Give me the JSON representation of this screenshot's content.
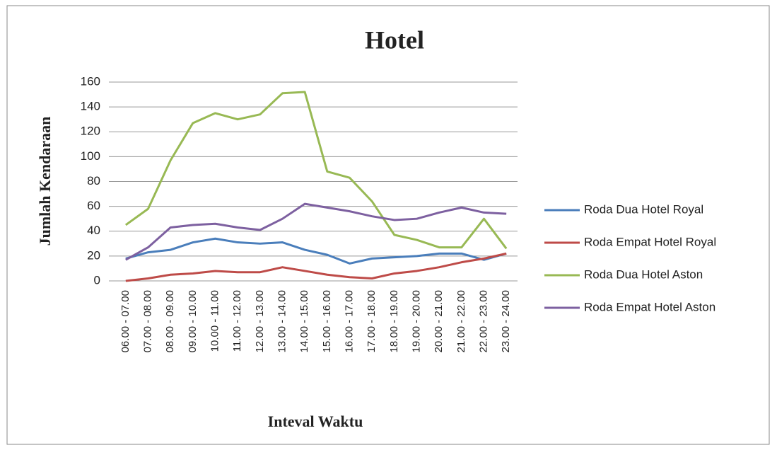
{
  "chart_data": {
    "type": "line",
    "title": "Hotel",
    "x_label": "Inteval Waktu",
    "y_label": "Jumlah Kendaraan",
    "categories": [
      "06.00 - 07.00",
      "07.00 - 08.00",
      "08.00 - 09.00",
      "09.00 - 10.00",
      "10.00 - 11.00",
      "11.00 - 12.00",
      "12.00 - 13.00",
      "13.00 - 14.00",
      "14.00 - 15.00",
      "15.00 - 16.00",
      "16.00 - 17.00",
      "17.00 - 18.00",
      "18.00 - 19.00",
      "19.00 - 20.00",
      "20.00 - 21.00",
      "21.00 - 22.00",
      "22.00 - 23.00",
      "23.00 - 24.00"
    ],
    "series": [
      {
        "name": "Roda Dua Hotel Royal",
        "color": "#4a7ebb",
        "values": [
          18,
          23,
          25,
          31,
          34,
          31,
          30,
          31,
          25,
          21,
          14,
          18,
          19,
          20,
          22,
          22,
          17,
          22
        ]
      },
      {
        "name": "Roda Empat Hotel Royal",
        "color": "#be4b48",
        "values": [
          0,
          2,
          5,
          6,
          8,
          7,
          7,
          11,
          8,
          5,
          3,
          2,
          6,
          8,
          11,
          15,
          18,
          22
        ]
      },
      {
        "name": "Roda Dua Hotel Aston",
        "color": "#98b954",
        "values": [
          45,
          58,
          97,
          127,
          135,
          130,
          134,
          151,
          152,
          88,
          83,
          64,
          37,
          33,
          27,
          27,
          50,
          26
        ]
      },
      {
        "name": "Roda Empat Hotel Aston",
        "color": "#7d60a0",
        "values": [
          17,
          27,
          43,
          45,
          46,
          43,
          41,
          50,
          62,
          59,
          56,
          52,
          49,
          50,
          55,
          59,
          55,
          54
        ]
      }
    ],
    "ylim": [
      0,
      160
    ],
    "yticks": [
      0,
      20,
      40,
      60,
      80,
      100,
      120,
      140,
      160
    ],
    "grid": true,
    "legend": "right"
  }
}
